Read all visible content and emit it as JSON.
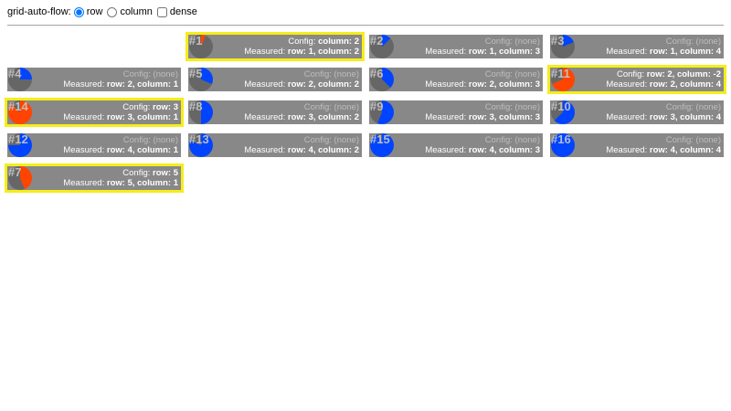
{
  "controls": {
    "label": "grid-auto-flow:",
    "options": [
      {
        "label": "row",
        "type": "radio",
        "checked": true
      },
      {
        "label": "column",
        "type": "radio",
        "checked": false
      },
      {
        "label": "dense",
        "type": "checkbox",
        "checked": false
      }
    ]
  },
  "colors": {
    "unconfigured_pie": "#0044ff",
    "configured_pie": "#ff4400",
    "highlight": "#f5ee1a",
    "cell_bg": "#888888",
    "pie_bg": "#666666"
  },
  "total_items": 16,
  "config_label": "Config:",
  "measured_label": "Measured:",
  "items": [
    {
      "label": "#1",
      "n": 1,
      "config": "column: 2",
      "measured": "row: 1, column: 2",
      "row": 1,
      "col": 2
    },
    {
      "label": "#2",
      "n": 2,
      "config": "(none)",
      "measured": "row: 1, column: 3",
      "row": 1,
      "col": 3
    },
    {
      "label": "#3",
      "n": 3,
      "config": "(none)",
      "measured": "row: 1, column: 4",
      "row": 1,
      "col": 4
    },
    {
      "label": "#4",
      "n": 4,
      "config": "(none)",
      "measured": "row: 2, column: 1",
      "row": 2,
      "col": 1
    },
    {
      "label": "#5",
      "n": 5,
      "config": "(none)",
      "measured": "row: 2, column: 2",
      "row": 2,
      "col": 2
    },
    {
      "label": "#6",
      "n": 6,
      "config": "(none)",
      "measured": "row: 2, column: 3",
      "row": 2,
      "col": 3
    },
    {
      "label": "#11",
      "n": 11,
      "config": "row: 2, column: -2",
      "measured": "row: 2, column: 4",
      "row": 2,
      "col": 4
    },
    {
      "label": "#14",
      "n": 14,
      "config": "row: 3",
      "measured": "row: 3, column: 1",
      "row": 3,
      "col": 1
    },
    {
      "label": "#8",
      "n": 8,
      "config": "(none)",
      "measured": "row: 3, column: 2",
      "row": 3,
      "col": 2
    },
    {
      "label": "#9",
      "n": 9,
      "config": "(none)",
      "measured": "row: 3, column: 3",
      "row": 3,
      "col": 3
    },
    {
      "label": "#10",
      "n": 10,
      "config": "(none)",
      "measured": "row: 3, column: 4",
      "row": 3,
      "col": 4
    },
    {
      "label": "#12",
      "n": 12,
      "config": "(none)",
      "measured": "row: 4, column: 1",
      "row": 4,
      "col": 1
    },
    {
      "label": "#13",
      "n": 13,
      "config": "(none)",
      "measured": "row: 4, column: 2",
      "row": 4,
      "col": 2
    },
    {
      "label": "#15",
      "n": 15,
      "config": "(none)",
      "measured": "row: 4, column: 3",
      "row": 4,
      "col": 3
    },
    {
      "label": "#16",
      "n": 16,
      "config": "(none)",
      "measured": "row: 4, column: 4",
      "row": 4,
      "col": 4
    },
    {
      "label": "#7",
      "n": 7,
      "config": "row: 5",
      "measured": "row: 5, column: 1",
      "row": 5,
      "col": 1
    }
  ]
}
